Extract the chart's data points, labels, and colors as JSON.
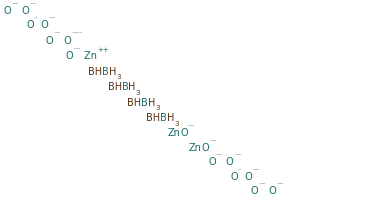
{
  "background": "#ffffff",
  "teal": "#1a6b6b",
  "brown": "#5a3010",
  "fs_main": 7.0,
  "fs_script": 5.0,
  "rows": [
    {
      "fx": 0.01,
      "fy": 0.935,
      "segs": [
        [
          "O",
          "teal",
          "n"
        ],
        [
          "⁻⁻",
          "teal",
          "sup"
        ],
        [
          " O",
          "teal",
          "n"
        ],
        [
          "⁻⁻",
          "teal",
          "sup"
        ]
      ]
    },
    {
      "fx": 0.068,
      "fy": 0.87,
      "segs": [
        [
          "O",
          "teal",
          "n"
        ],
        [
          "⁻",
          "teal",
          "sup"
        ],
        [
          " O",
          "teal",
          "n"
        ],
        [
          "⁻⁻",
          "teal",
          "sup"
        ]
      ]
    },
    {
      "fx": 0.118,
      "fy": 0.8,
      "segs": [
        [
          "O",
          "teal",
          "n"
        ],
        [
          "⁻⁻",
          "teal",
          "sup"
        ],
        [
          " O",
          "teal",
          "n"
        ],
        [
          "⁻⁻⁻",
          "teal",
          "sup"
        ]
      ]
    },
    {
      "fx": 0.17,
      "fy": 0.73,
      "segs": [
        [
          "O",
          "teal",
          "n"
        ],
        [
          "⁻⁻",
          "teal",
          "sup"
        ],
        [
          " Zn",
          "teal",
          "n"
        ],
        [
          "++",
          "teal",
          "sup"
        ]
      ]
    },
    {
      "fx": 0.228,
      "fy": 0.658,
      "segs": [
        [
          "BH",
          "brown",
          "n"
        ],
        [
          "B",
          "teal",
          "n"
        ],
        [
          "H",
          "brown",
          "n"
        ],
        [
          "3",
          "brown",
          "sub"
        ]
      ]
    },
    {
      "fx": 0.278,
      "fy": 0.587,
      "segs": [
        [
          "BH",
          "brown",
          "n"
        ],
        [
          "B",
          "teal",
          "n"
        ],
        [
          "H",
          "brown",
          "n"
        ],
        [
          "3",
          "brown",
          "sub"
        ]
      ]
    },
    {
      "fx": 0.328,
      "fy": 0.516,
      "segs": [
        [
          "BH",
          "brown",
          "n"
        ],
        [
          "B",
          "teal",
          "n"
        ],
        [
          "H",
          "brown",
          "n"
        ],
        [
          "3",
          "brown",
          "sub"
        ]
      ]
    },
    {
      "fx": 0.378,
      "fy": 0.445,
      "segs": [
        [
          "BH",
          "brown",
          "n"
        ],
        [
          "B",
          "teal",
          "n"
        ],
        [
          "H",
          "brown",
          "n"
        ],
        [
          "3",
          "brown",
          "sub"
        ]
      ]
    },
    {
      "fx": 0.432,
      "fy": 0.376,
      "segs": [
        [
          "Zn",
          "teal",
          "n"
        ],
        [
          "O",
          "teal",
          "n"
        ],
        [
          "⁻⁻",
          "teal",
          "sup"
        ]
      ]
    },
    {
      "fx": 0.488,
      "fy": 0.308,
      "segs": [
        [
          "Zn",
          "teal",
          "n"
        ],
        [
          "O",
          "teal",
          "n"
        ],
        [
          "⁻⁻",
          "teal",
          "sup"
        ]
      ]
    },
    {
      "fx": 0.538,
      "fy": 0.242,
      "segs": [
        [
          "O",
          "teal",
          "n"
        ],
        [
          "⁻⁻",
          "teal",
          "sup"
        ],
        [
          " O",
          "teal",
          "n"
        ],
        [
          "⁻⁻",
          "teal",
          "sup"
        ]
      ]
    },
    {
      "fx": 0.595,
      "fy": 0.175,
      "segs": [
        [
          "O",
          "teal",
          "n"
        ],
        [
          "⁻",
          "teal",
          "sup"
        ],
        [
          " O",
          "teal",
          "n"
        ],
        [
          "⁻⁻",
          "teal",
          "sup"
        ]
      ]
    },
    {
      "fx": 0.648,
      "fy": 0.108,
      "segs": [
        [
          "O",
          "teal",
          "n"
        ],
        [
          "⁻⁻",
          "teal",
          "sup"
        ],
        [
          " O",
          "teal",
          "n"
        ],
        [
          "⁻⁻",
          "teal",
          "sup"
        ]
      ]
    }
  ]
}
